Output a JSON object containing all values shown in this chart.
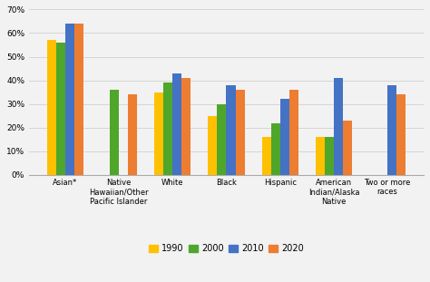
{
  "categories": [
    "Asian*",
    "Native\nHawaiian/Other\nPacific Islander",
    "White",
    "Black",
    "Hispanic",
    "American\nIndian/Alaska\nNative",
    "Two or more\nraces"
  ],
  "series": {
    "1990": [
      57,
      0,
      35,
      25,
      16,
      16,
      0
    ],
    "2000": [
      56,
      36,
      39,
      30,
      22,
      16,
      0
    ],
    "2010": [
      64,
      0,
      43,
      38,
      32,
      41,
      38
    ],
    "2020": [
      64,
      34,
      41,
      36,
      36,
      23,
      34
    ]
  },
  "colors": {
    "1990": "#FFC000",
    "2000": "#4EA72A",
    "2010": "#4472C4",
    "2020": "#ED7D31"
  },
  "ylim": [
    0,
    70
  ],
  "yticks": [
    0,
    10,
    20,
    30,
    40,
    50,
    60,
    70
  ],
  "ytick_labels": [
    "0%",
    "10%",
    "20%",
    "30%",
    "40%",
    "50%",
    "60%",
    "70%"
  ],
  "legend_labels": [
    "1990",
    "2000",
    "2010",
    "2020"
  ],
  "background_color": "#f2f2f2"
}
